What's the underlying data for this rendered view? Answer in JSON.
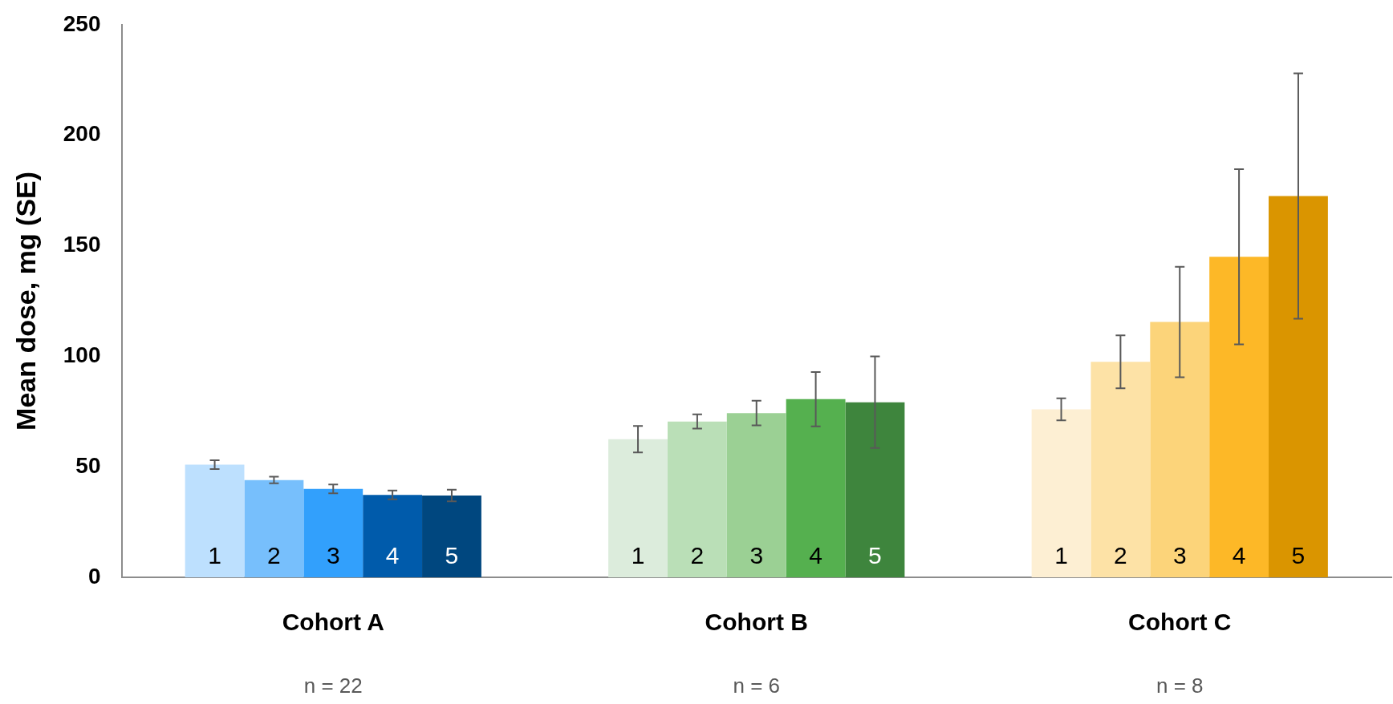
{
  "chart_data": {
    "type": "bar",
    "ylabel": "Mean dose, mg (SE)",
    "categories": [
      "Cohort A",
      "Cohort B",
      "Cohort C"
    ],
    "ylim": [
      0,
      250
    ],
    "yticks": [
      0,
      50,
      100,
      150,
      200,
      250
    ],
    "grid": false,
    "legend": false,
    "series": [
      {
        "name": "1",
        "colors": [
          "#bde0fe",
          "#dcecdc",
          "#fdefd3"
        ],
        "values": [
          51,
          62.5,
          76
        ],
        "errors": [
          2,
          6,
          5
        ]
      },
      {
        "name": "2",
        "colors": [
          "#77bffc",
          "#badfb7",
          "#fde2a6"
        ],
        "values": [
          44,
          70.5,
          97.5
        ],
        "errors": [
          1.5,
          3.2,
          12
        ]
      },
      {
        "name": "3",
        "colors": [
          "#32a0fc",
          "#9bd094",
          "#fcd47a"
        ],
        "values": [
          40,
          74.3,
          115.5
        ],
        "errors": [
          2,
          5.6,
          25
        ]
      },
      {
        "name": "4",
        "colors": [
          "#005bab",
          "#55b04f",
          "#fdb827"
        ],
        "values": [
          37.3,
          80.6,
          145
        ],
        "errors": [
          2,
          12.3,
          39.6
        ]
      },
      {
        "name": "5",
        "colors": [
          "#00477f",
          "#3e853d",
          "#da9500"
        ],
        "values": [
          37,
          79.2,
          172.5
        ],
        "errors": [
          2.6,
          20.7,
          55.5
        ]
      }
    ],
    "annotations": [
      "n = 22",
      "n = 6",
      "n = 8"
    ]
  }
}
